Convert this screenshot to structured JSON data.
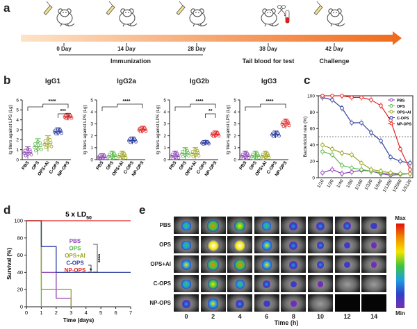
{
  "panel_labels": {
    "a": "a",
    "b": "b",
    "c": "c",
    "d": "d",
    "e": "e"
  },
  "timeline": {
    "days": [
      "0 Day",
      "14 Day",
      "28 Day",
      "38 Day",
      "42 Day"
    ],
    "phases": {
      "immunization": "Immunization",
      "tail_blood": "Tail blood for test",
      "challenge": "Challenge"
    },
    "colors": {
      "arrow_start": "#fde3c8",
      "arrow_end": "#ef6a1a"
    }
  },
  "groups": [
    "PBS",
    "OPS",
    "OPS+Al",
    "C-OPS",
    "NP-OPS"
  ],
  "group_colors": {
    "PBS": "#8b3fb3",
    "OPS": "#58b548",
    "OPS+Al": "#9aa31c",
    "C-OPS": "#2e3f9e",
    "NP-OPS": "#e32020"
  },
  "chart_data": [
    {
      "id": "b-igg1",
      "type": "scatter",
      "title": "IgG1",
      "ylabel": "Ig titers against LPS (Lg)",
      "ylim": [
        0,
        6
      ],
      "yticks": [
        "0",
        "1",
        "2",
        "3",
        "4",
        "5",
        "6"
      ],
      "categories": [
        "PBS",
        "OPS",
        "OPS+Al",
        "C-OPS",
        "NP-OPS"
      ],
      "means": [
        0.7,
        1.3,
        1.6,
        2.8,
        4.3
      ],
      "errors": [
        0.6,
        0.8,
        0.8,
        0.4,
        0.35
      ],
      "significance": [
        {
          "label": "****",
          "from": "PBS",
          "to": "NP-OPS"
        },
        {
          "label": "***",
          "from": "C-OPS",
          "to": "NP-OPS"
        }
      ]
    },
    {
      "id": "b-igg2a",
      "type": "scatter",
      "title": "IgG2a",
      "ylabel": "Ig titers against LPS (Lg)",
      "ylim": [
        0,
        5
      ],
      "yticks": [
        "0",
        "1",
        "2",
        "3",
        "4",
        "5"
      ],
      "categories": [
        "PBS",
        "OPS",
        "OPS+Al",
        "C-OPS",
        "NP-OPS"
      ],
      "means": [
        0.2,
        0.3,
        0.3,
        1.6,
        2.5
      ],
      "errors": [
        0.3,
        0.4,
        0.4,
        0.3,
        0.3
      ],
      "significance": [
        {
          "label": "****",
          "from": "PBS",
          "to": "NP-OPS"
        }
      ]
    },
    {
      "id": "b-igg2b",
      "type": "scatter",
      "title": "IgG2b",
      "ylabel": "Ig titers against LPS (Lg)",
      "ylim": [
        0,
        5
      ],
      "yticks": [
        "0",
        "1",
        "2",
        "3",
        "4",
        "5"
      ],
      "categories": [
        "PBS",
        "OPS",
        "OPS+Al",
        "C-OPS",
        "NP-OPS"
      ],
      "means": [
        0.3,
        0.5,
        0.5,
        1.4,
        2.1
      ],
      "errors": [
        0.4,
        0.5,
        0.5,
        0.2,
        0.3
      ],
      "significance": [
        {
          "label": "****",
          "from": "PBS",
          "to": "NP-OPS"
        },
        {
          "label": "**",
          "from": "C-OPS",
          "to": "NP-OPS"
        }
      ]
    },
    {
      "id": "b-igg3",
      "type": "scatter",
      "title": "IgG3",
      "ylabel": "Ig titers against LPS (Lg)",
      "ylim": [
        0,
        5
      ],
      "yticks": [
        "0",
        "1",
        "2",
        "3",
        "4",
        "5"
      ],
      "categories": [
        "PBS",
        "OPS",
        "OPS+Al",
        "C-OPS",
        "NP-OPS"
      ],
      "means": [
        0.3,
        0.3,
        0.3,
        2.1,
        3.0
      ],
      "errors": [
        0.4,
        0.4,
        0.4,
        0.3,
        0.4
      ],
      "significance": [
        {
          "label": "****",
          "from": "PBS",
          "to": "NP-OPS"
        }
      ]
    },
    {
      "id": "c-bactericidal",
      "type": "line",
      "ylabel": "Bactericidal rate (%)",
      "ylim": [
        0,
        100
      ],
      "yticks": [
        "0",
        "20",
        "40",
        "60",
        "80",
        "100"
      ],
      "x": [
        "1/10",
        "1/20",
        "1/40",
        "1/80",
        "1/160",
        "1/320",
        "1/640",
        "1/1280",
        "1/2560",
        "1/5120"
      ],
      "series": [
        {
          "name": "PBS",
          "values": [
            6,
            10,
            5,
            7,
            9,
            8,
            5,
            3,
            4,
            5
          ]
        },
        {
          "name": "OPS",
          "values": [
            32,
            28,
            15,
            12,
            10,
            8,
            6,
            5,
            4,
            5
          ]
        },
        {
          "name": "OPS+Al",
          "values": [
            40,
            35,
            30,
            28,
            18,
            10,
            8,
            6,
            5,
            5
          ]
        },
        {
          "name": "C-OPS",
          "values": [
            98,
            95,
            85,
            67,
            67,
            55,
            45,
            25,
            20,
            18
          ]
        },
        {
          "name": "NP-OPS",
          "values": [
            100,
            100,
            100,
            98,
            98,
            95,
            88,
            70,
            35,
            10
          ]
        }
      ],
      "threshold": 50
    },
    {
      "id": "d-survival",
      "type": "line",
      "title": "5 x LD",
      "title_sub": "50",
      "xlabel": "Time (days)",
      "ylabel": "Survival (%)",
      "xlim": [
        0,
        7
      ],
      "ylim": [
        0,
        100
      ],
      "xticks": [
        "0",
        "1",
        "2",
        "3",
        "4",
        "5",
        "6",
        "7"
      ],
      "yticks": [
        "0",
        "20",
        "40",
        "60",
        "80",
        "100"
      ],
      "series": [
        {
          "name": "PBS",
          "steps": [
            [
              0,
              100
            ],
            [
              1,
              100
            ],
            [
              1,
              40
            ],
            [
              2,
              40
            ],
            [
              2,
              10
            ],
            [
              3,
              10
            ],
            [
              3,
              0
            ]
          ]
        },
        {
          "name": "OPS",
          "steps": [
            [
              0,
              100
            ],
            [
              1,
              100
            ],
            [
              1,
              0
            ]
          ]
        },
        {
          "name": "OPS+Al",
          "steps": [
            [
              0,
              100
            ],
            [
              1,
              100
            ],
            [
              1,
              20
            ],
            [
              3,
              20
            ],
            [
              3,
              0
            ]
          ]
        },
        {
          "name": "C-OPS",
          "steps": [
            [
              0,
              100
            ],
            [
              1,
              100
            ],
            [
              1,
              70
            ],
            [
              2,
              70
            ],
            [
              2,
              40
            ],
            [
              7,
              40
            ]
          ]
        },
        {
          "name": "NP-OPS",
          "steps": [
            [
              0,
              100
            ],
            [
              7,
              100
            ]
          ]
        }
      ],
      "significance": [
        {
          "label": "****"
        },
        {
          "label": "*"
        }
      ]
    }
  ],
  "imaging": {
    "rows": [
      "PBS",
      "OPS",
      "OPS+Al",
      "C-OPS",
      "NP-OPS"
    ],
    "times": [
      "0",
      "2",
      "4",
      "6",
      "8",
      "10",
      "12",
      "14"
    ],
    "xlabel": "Time (h)",
    "scale_max": "Max",
    "scale_min": "Min",
    "intensity": [
      [
        0.6,
        0.9,
        0.8,
        0.6,
        0.5,
        0.5,
        0.4,
        0.3
      ],
      [
        0.6,
        1.0,
        1.0,
        0.7,
        0.5,
        0.4,
        0.3,
        0.2
      ],
      [
        0.7,
        0.9,
        0.9,
        0.7,
        0.5,
        0.4,
        0.3,
        0.2
      ],
      [
        0.6,
        0.8,
        0.6,
        0.4,
        0.3,
        0.2,
        0.0,
        0.0
      ],
      [
        0.5,
        0.7,
        0.5,
        0.3,
        0.2,
        0.0,
        -1,
        -1
      ]
    ]
  }
}
